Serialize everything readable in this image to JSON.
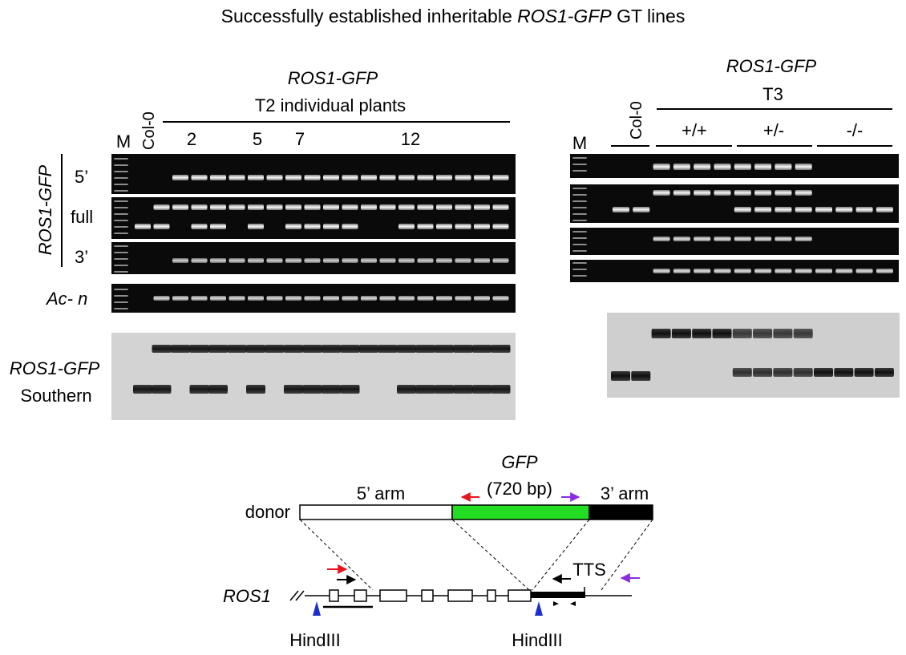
{
  "title": {
    "prefix": "Successfully established inheritable ",
    "gene": "ROS1-GFP",
    "suffix": " GT lines"
  },
  "t2_panel": {
    "construct": "ROS1-GFP",
    "subtitle": "T2 individual plants",
    "marker": "M",
    "control": "Col-0",
    "plant_numbers": [
      "2",
      "5",
      "7",
      "12"
    ],
    "side_label": "ROS1-GFP",
    "row_labels": [
      "5’",
      "full",
      "3’"
    ],
    "actin_label": "Ac- n",
    "southern_gene": "ROS1-GFP",
    "southern_label": "Southern"
  },
  "t3_panel": {
    "construct": "ROS1-GFP",
    "generation": "T3",
    "marker": "M",
    "control": "Col-0",
    "genotypes": [
      "+/+",
      "+/-",
      "-/-"
    ]
  },
  "schematic": {
    "gfp_label": "GFP",
    "gfp_size": "(720 bp)",
    "arm5_label": "5’ arm",
    "arm3_label": "3’ arm",
    "donor_label": "donor",
    "gene_label": "ROS1",
    "tts_label": "TTS",
    "site1_label": "HindIII",
    "site2_label": "HindIII",
    "colors": {
      "gfp": "#22dd22",
      "arm3": "#000000",
      "primer_red": "#e8141e",
      "primer_purple": "#8a2be2",
      "hindiii": "#1a2fcc"
    }
  }
}
